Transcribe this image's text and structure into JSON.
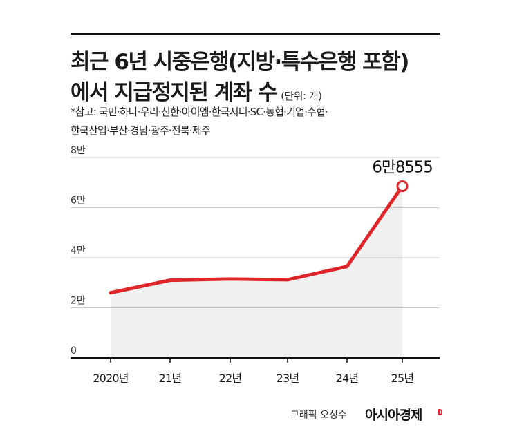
{
  "title": {
    "line1": "최근 6년 시중은행(지방·특수은행 포함)",
    "line2": "에서 지급정지된 계좌 수",
    "unit": "(단위: 개)"
  },
  "note": {
    "line1": "*참고: 국민·하나·우리·신한·아이엠·한국시티·SC·농협·기업·수협·",
    "line2": "한국산업·부산·경남·광주·전북·제주"
  },
  "chart_data": {
    "type": "area",
    "categories": [
      "2020년",
      "21년",
      "22년",
      "23년",
      "24년",
      "25년"
    ],
    "values": [
      26000,
      31000,
      31500,
      31200,
      36500,
      68555
    ],
    "ylim": [
      0,
      80000
    ],
    "yticks": [
      {
        "value": 0,
        "label": "0"
      },
      {
        "value": 20000,
        "label": "2만"
      },
      {
        "value": 40000,
        "label": "4만"
      },
      {
        "value": 60000,
        "label": "6만"
      },
      {
        "value": 80000,
        "label": "8만"
      }
    ],
    "annotation": {
      "category": "25년",
      "value": 68555,
      "label": "6만8555"
    },
    "grid": true,
    "line_color": "#e0262a",
    "fill_color": "#f0f0f0",
    "grid_color": "#c8c8c8"
  },
  "credit": {
    "author": "그래픽 오성수",
    "publisher": "아시아경제"
  }
}
